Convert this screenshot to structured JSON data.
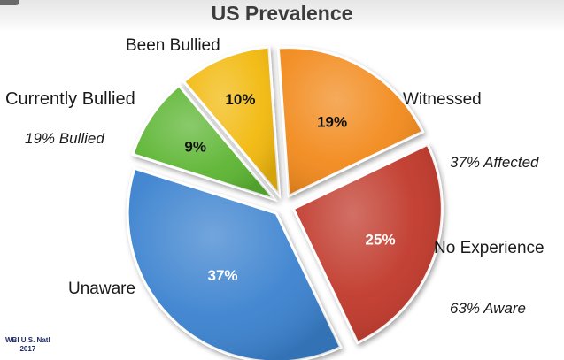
{
  "title": "US Prevalence",
  "chart_data": {
    "type": "pie",
    "slices": [
      {
        "label": "Witnessed",
        "value": 19,
        "data_label": "19%",
        "color": "#f28a1e"
      },
      {
        "label": "No Experience",
        "value": 25,
        "data_label": "25%",
        "color": "#c0392b"
      },
      {
        "label": "Unaware",
        "value": 37,
        "data_label": "37%",
        "color": "#3a82cf"
      },
      {
        "label": "Currently Bullied",
        "value": 9,
        "data_label": "9%",
        "color": "#5cb531"
      },
      {
        "label": "Been Bullied",
        "value": 10,
        "data_label": "10%",
        "color": "#f2b90f"
      }
    ],
    "exploded": true,
    "annotations": [
      {
        "text": "19% Bullied"
      },
      {
        "text": "37% Affected"
      },
      {
        "text": "63% Aware"
      }
    ]
  },
  "source": {
    "line1": "WBI U.S. Natl",
    "line2": "2017"
  }
}
